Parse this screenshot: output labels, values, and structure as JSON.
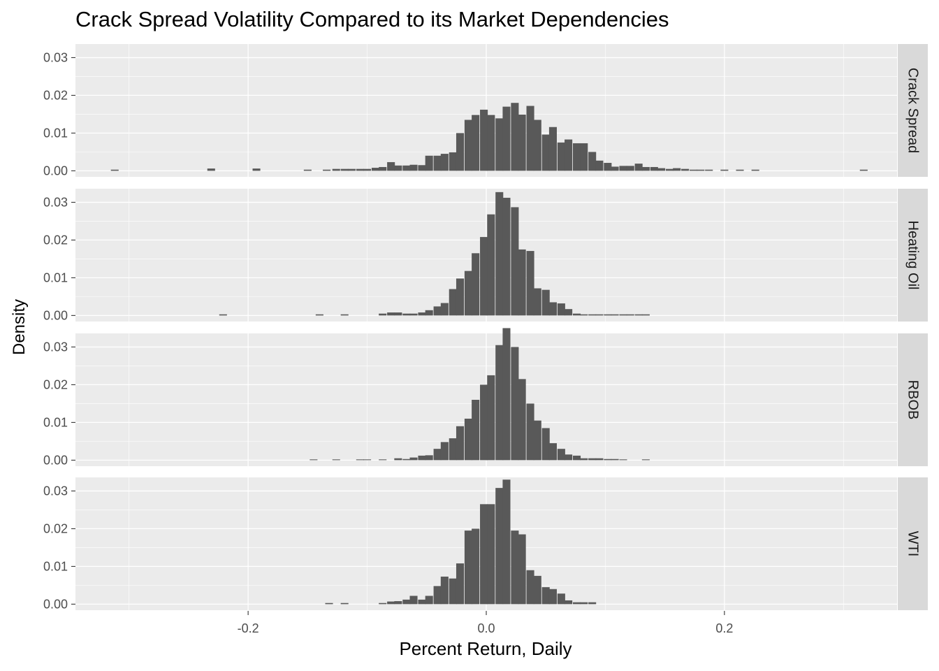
{
  "chart_data": {
    "type": "histogram",
    "title": "Crack Spread Volatility Compared to its Market Dependencies",
    "xlabel": "Percent Return, Daily",
    "ylabel": "Density",
    "xlim": [
      -0.345,
      0.345
    ],
    "ylim": [
      -0.0016,
      0.0336
    ],
    "x_ticks": [
      -0.2,
      0.0,
      0.2
    ],
    "x_tick_labels": [
      "-0.2",
      "0.0",
      "0.2"
    ],
    "y_ticks": [
      0.0,
      0.01,
      0.02,
      0.03
    ],
    "y_tick_labels": [
      "0.00",
      "0.01",
      "0.02",
      "0.03"
    ],
    "bin_width": 0.0065,
    "grid": true,
    "bar_color": "#595959",
    "panel_background": "#ebebeb",
    "strip_background": "#d9d9d9",
    "facet_layout": "rows, strip labels on right",
    "panels": [
      {
        "label": "Crack Spread",
        "bins": [
          {
            "x": -0.312,
            "y": 0.0003
          },
          {
            "x": -0.231,
            "y": 0.0006
          },
          {
            "x": -0.193,
            "y": 0.0006
          },
          {
            "x": -0.15,
            "y": 0.0003
          },
          {
            "x": -0.134,
            "y": 0.0003
          },
          {
            "x": -0.126,
            "y": 0.0005
          },
          {
            "x": -0.119,
            "y": 0.0005
          },
          {
            "x": -0.113,
            "y": 0.0005
          },
          {
            "x": -0.106,
            "y": 0.0005
          },
          {
            "x": -0.1,
            "y": 0.0005
          },
          {
            "x": -0.093,
            "y": 0.0008
          },
          {
            "x": -0.087,
            "y": 0.001
          },
          {
            "x": -0.08,
            "y": 0.0023
          },
          {
            "x": -0.074,
            "y": 0.0014
          },
          {
            "x": -0.067,
            "y": 0.0014
          },
          {
            "x": -0.061,
            "y": 0.0016
          },
          {
            "x": -0.054,
            "y": 0.0015
          },
          {
            "x": -0.048,
            "y": 0.004
          },
          {
            "x": -0.041,
            "y": 0.004
          },
          {
            "x": -0.035,
            "y": 0.0045
          },
          {
            "x": -0.028,
            "y": 0.0049
          },
          {
            "x": -0.022,
            "y": 0.01
          },
          {
            "x": -0.015,
            "y": 0.0135
          },
          {
            "x": -0.009,
            "y": 0.0148
          },
          {
            "x": -0.002,
            "y": 0.0162
          },
          {
            "x": 0.004,
            "y": 0.0148
          },
          {
            "x": 0.011,
            "y": 0.0139
          },
          {
            "x": 0.017,
            "y": 0.017
          },
          {
            "x": 0.024,
            "y": 0.018
          },
          {
            "x": 0.03,
            "y": 0.0149
          },
          {
            "x": 0.037,
            "y": 0.0172
          },
          {
            "x": 0.043,
            "y": 0.0135
          },
          {
            "x": 0.05,
            "y": 0.0096
          },
          {
            "x": 0.056,
            "y": 0.0116
          },
          {
            "x": 0.063,
            "y": 0.0075
          },
          {
            "x": 0.069,
            "y": 0.0083
          },
          {
            "x": 0.076,
            "y": 0.0073
          },
          {
            "x": 0.082,
            "y": 0.0073
          },
          {
            "x": 0.089,
            "y": 0.005
          },
          {
            "x": 0.095,
            "y": 0.0027
          },
          {
            "x": 0.102,
            "y": 0.0021
          },
          {
            "x": 0.108,
            "y": 0.0011
          },
          {
            "x": 0.115,
            "y": 0.0013
          },
          {
            "x": 0.121,
            "y": 0.0013
          },
          {
            "x": 0.128,
            "y": 0.0019
          },
          {
            "x": 0.134,
            "y": 0.001
          },
          {
            "x": 0.141,
            "y": 0.001
          },
          {
            "x": 0.147,
            "y": 0.0007
          },
          {
            "x": 0.154,
            "y": 0.0005
          },
          {
            "x": 0.16,
            "y": 0.0007
          },
          {
            "x": 0.167,
            "y": 0.0005
          },
          {
            "x": 0.174,
            "y": 0.0003
          },
          {
            "x": 0.18,
            "y": 0.0003
          },
          {
            "x": 0.187,
            "y": 0.0003
          },
          {
            "x": 0.2,
            "y": 0.0003
          },
          {
            "x": 0.213,
            "y": 0.0003
          },
          {
            "x": 0.226,
            "y": 0.0003
          },
          {
            "x": 0.317,
            "y": 0.0003
          }
        ]
      },
      {
        "label": "Heating Oil",
        "bins": [
          {
            "x": -0.221,
            "y": 0.0003
          },
          {
            "x": -0.14,
            "y": 0.0003
          },
          {
            "x": -0.119,
            "y": 0.0003
          },
          {
            "x": -0.087,
            "y": 0.0005
          },
          {
            "x": -0.08,
            "y": 0.0008
          },
          {
            "x": -0.074,
            "y": 0.0008
          },
          {
            "x": -0.067,
            "y": 0.0005
          },
          {
            "x": -0.061,
            "y": 0.0005
          },
          {
            "x": -0.054,
            "y": 0.0008
          },
          {
            "x": -0.048,
            "y": 0.0014
          },
          {
            "x": -0.041,
            "y": 0.0024
          },
          {
            "x": -0.035,
            "y": 0.0033
          },
          {
            "x": -0.028,
            "y": 0.007
          },
          {
            "x": -0.022,
            "y": 0.0098
          },
          {
            "x": -0.015,
            "y": 0.0118
          },
          {
            "x": -0.009,
            "y": 0.0165
          },
          {
            "x": -0.002,
            "y": 0.0208
          },
          {
            "x": 0.004,
            "y": 0.0268
          },
          {
            "x": 0.011,
            "y": 0.0327
          },
          {
            "x": 0.017,
            "y": 0.0312
          },
          {
            "x": 0.024,
            "y": 0.0287
          },
          {
            "x": 0.03,
            "y": 0.0175
          },
          {
            "x": 0.037,
            "y": 0.0171
          },
          {
            "x": 0.043,
            "y": 0.0072
          },
          {
            "x": 0.05,
            "y": 0.0068
          },
          {
            "x": 0.056,
            "y": 0.0035
          },
          {
            "x": 0.063,
            "y": 0.0032
          },
          {
            "x": 0.069,
            "y": 0.0017
          },
          {
            "x": 0.076,
            "y": 0.0005
          },
          {
            "x": 0.082,
            "y": 0.0003
          },
          {
            "x": 0.089,
            "y": 0.0003
          },
          {
            "x": 0.095,
            "y": 0.0003
          },
          {
            "x": 0.102,
            "y": 0.0003
          },
          {
            "x": 0.108,
            "y": 0.0003
          },
          {
            "x": 0.115,
            "y": 0.0003
          },
          {
            "x": 0.121,
            "y": 0.0003
          },
          {
            "x": 0.128,
            "y": 0.0003
          },
          {
            "x": 0.134,
            "y": 0.0003
          }
        ]
      },
      {
        "label": "RBOB",
        "bins": [
          {
            "x": -0.145,
            "y": 0.0002
          },
          {
            "x": -0.126,
            "y": 0.0002
          },
          {
            "x": -0.106,
            "y": 0.0002
          },
          {
            "x": -0.1,
            "y": 0.0002
          },
          {
            "x": -0.087,
            "y": 0.0002
          },
          {
            "x": -0.074,
            "y": 0.0005
          },
          {
            "x": -0.067,
            "y": 0.0003
          },
          {
            "x": -0.061,
            "y": 0.0007
          },
          {
            "x": -0.054,
            "y": 0.0012
          },
          {
            "x": -0.048,
            "y": 0.0013
          },
          {
            "x": -0.041,
            "y": 0.003
          },
          {
            "x": -0.035,
            "y": 0.0048
          },
          {
            "x": -0.028,
            "y": 0.0058
          },
          {
            "x": -0.022,
            "y": 0.009
          },
          {
            "x": -0.015,
            "y": 0.011
          },
          {
            "x": -0.009,
            "y": 0.016
          },
          {
            "x": -0.002,
            "y": 0.02
          },
          {
            "x": 0.004,
            "y": 0.0225
          },
          {
            "x": 0.011,
            "y": 0.0305
          },
          {
            "x": 0.017,
            "y": 0.035
          },
          {
            "x": 0.024,
            "y": 0.03
          },
          {
            "x": 0.03,
            "y": 0.0215
          },
          {
            "x": 0.037,
            "y": 0.015
          },
          {
            "x": 0.043,
            "y": 0.0105
          },
          {
            "x": 0.05,
            "y": 0.0085
          },
          {
            "x": 0.056,
            "y": 0.0045
          },
          {
            "x": 0.063,
            "y": 0.003
          },
          {
            "x": 0.069,
            "y": 0.0015
          },
          {
            "x": 0.076,
            "y": 0.0012
          },
          {
            "x": 0.082,
            "y": 0.0005
          },
          {
            "x": 0.089,
            "y": 0.0005
          },
          {
            "x": 0.095,
            "y": 0.0005
          },
          {
            "x": 0.102,
            "y": 0.0003
          },
          {
            "x": 0.108,
            "y": 0.0003
          },
          {
            "x": 0.115,
            "y": 0.0002
          },
          {
            "x": 0.134,
            "y": 0.0002
          }
        ]
      },
      {
        "label": "WTI",
        "bins": [
          {
            "x": -0.132,
            "y": 0.0003
          },
          {
            "x": -0.119,
            "y": 0.0003
          },
          {
            "x": -0.087,
            "y": 0.0003
          },
          {
            "x": -0.08,
            "y": 0.0007
          },
          {
            "x": -0.074,
            "y": 0.0008
          },
          {
            "x": -0.067,
            "y": 0.0012
          },
          {
            "x": -0.061,
            "y": 0.0022
          },
          {
            "x": -0.054,
            "y": 0.0012
          },
          {
            "x": -0.048,
            "y": 0.0022
          },
          {
            "x": -0.041,
            "y": 0.0048
          },
          {
            "x": -0.035,
            "y": 0.0073
          },
          {
            "x": -0.028,
            "y": 0.0068
          },
          {
            "x": -0.022,
            "y": 0.0108
          },
          {
            "x": -0.015,
            "y": 0.0195
          },
          {
            "x": -0.009,
            "y": 0.02
          },
          {
            "x": -0.002,
            "y": 0.0265
          },
          {
            "x": 0.004,
            "y": 0.0265
          },
          {
            "x": 0.011,
            "y": 0.0308
          },
          {
            "x": 0.017,
            "y": 0.033
          },
          {
            "x": 0.024,
            "y": 0.0195
          },
          {
            "x": 0.03,
            "y": 0.0185
          },
          {
            "x": 0.037,
            "y": 0.009
          },
          {
            "x": 0.043,
            "y": 0.0075
          },
          {
            "x": 0.05,
            "y": 0.0045
          },
          {
            "x": 0.056,
            "y": 0.004
          },
          {
            "x": 0.063,
            "y": 0.0028
          },
          {
            "x": 0.069,
            "y": 0.001
          },
          {
            "x": 0.076,
            "y": 0.0005
          },
          {
            "x": 0.082,
            "y": 0.0005
          },
          {
            "x": 0.089,
            "y": 0.0005
          }
        ]
      }
    ]
  }
}
